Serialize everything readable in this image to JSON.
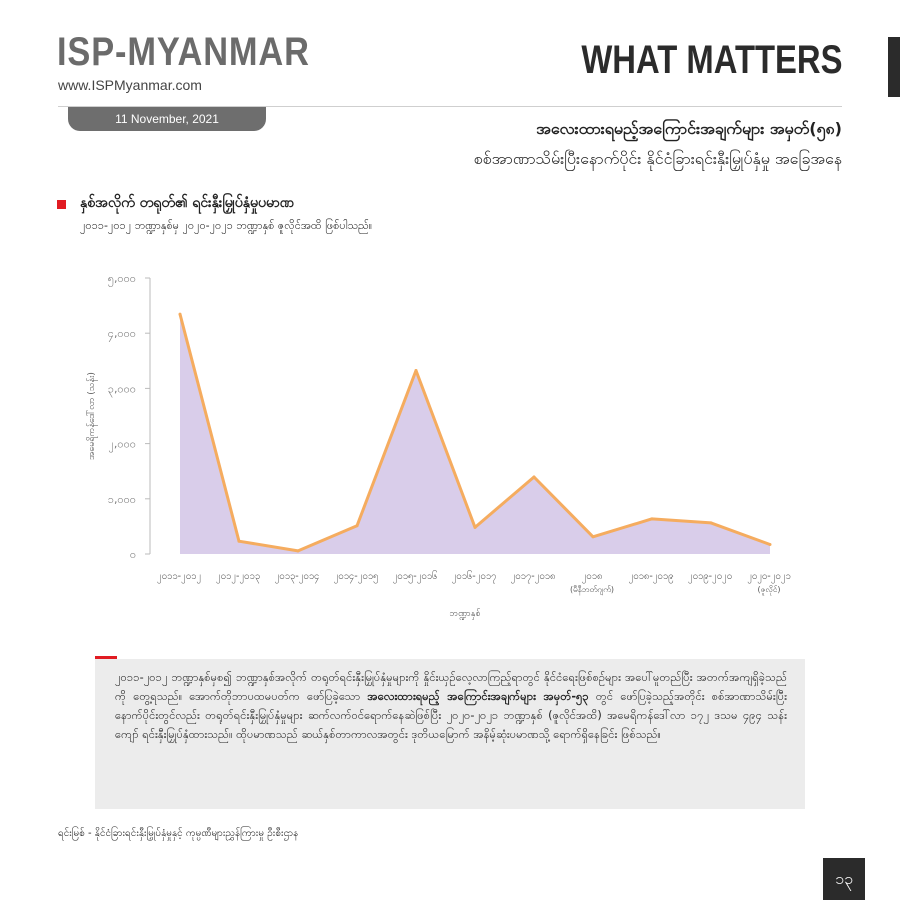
{
  "header": {
    "brand": "ISP-MYANMAR",
    "url": "www.ISPMyanmar.com",
    "section": "WHAT MATTERS",
    "date": "11 November, 2021"
  },
  "title": {
    "line1": "အလေးထားရမည့်အကြောင်းအချက်များ အမှတ်(၅၈)",
    "line2": "စစ်အာဏာသိမ်းပြီးနောက်ပိုင်း နိုင်ငံခြားရင်းနှီးမြှုပ်နှံမှု အခြေအနေ"
  },
  "section": {
    "title": "နှစ်အလိုက် တရုတ်၏ ရင်းနှီးမြှုပ်နှံမှုပမာဏ",
    "subtitle": "၂၀၁၁-၂၀၁၂ ဘဏ္ဍာနှစ်မှ ၂၀၂၀-၂၀၂၁ ဘဏ္ဍာနှစ် ဇူလိုင်အထိ ဖြစ်ပါသည်။"
  },
  "chart_data": {
    "type": "area",
    "ylabel": "အမေရိကန်ဒေါ်လာ (သန်း)",
    "xlabel": "ဘဏ္ဍာနှစ်",
    "ylim": [
      0,
      5000
    ],
    "yticks": [
      "၅,၀၀၀",
      "၄,၀၀၀",
      "၃,၀၀၀",
      "၂,၀၀၀",
      "၁,၀၀၀",
      "၀"
    ],
    "categories": [
      {
        "label": "၂၀၁၁-၂၀၁၂",
        "sub": ""
      },
      {
        "label": "၂၀၁၂-၂၀၁၃",
        "sub": ""
      },
      {
        "label": "၂၀၁၃-၂၀၁၄",
        "sub": ""
      },
      {
        "label": "၂၀၁၄-၂၀၁၅",
        "sub": ""
      },
      {
        "label": "၂၀၁၅-၂၀၁၆",
        "sub": ""
      },
      {
        "label": "၂၀၁၆-၂၀၁၇",
        "sub": ""
      },
      {
        "label": "၂၀၁၇-၂၀၁၈",
        "sub": ""
      },
      {
        "label": "၂၀၁၈",
        "sub": "(မီနီဘတ်ဂျက်)"
      },
      {
        "label": "၂၀၁၈-၂၀၁၉",
        "sub": ""
      },
      {
        "label": "၂၀၁၉-၂၀၂၀",
        "sub": ""
      },
      {
        "label": "၂၀၂၀-၂၀၂၁",
        "sub": "(ဇူလိုင်)"
      }
    ],
    "values": [
      4346,
      232,
      56,
      511,
      3324,
      483,
      1395,
      312,
      637,
      563,
      172
    ],
    "colors": {
      "fill": "#d9cdea",
      "line": "#f5ac5f"
    },
    "grid": false
  },
  "note": {
    "p1": "၂၀၁၁-၂၀၁၂ ဘဏ္ဍာနှစ်မှစ၍ ဘဏ္ဍာနှစ်အလိုက် တရုတ်ရင်းနှီးမြှုပ်နှံမှုများကို နှိုင်းယှဉ်လေ့လာကြည့်ရာတွင် နိုင်ငံရေးဖြစ်စဉ်များ အပေါ်မူတည်ပြီး အတက်အကျရှိခဲ့သည်ကို တွေ့ရသည်။ အောက်တိုဘာပထမပတ်က ဖော်ပြခဲ့သော ",
    "bold": "အလေးထားရမည့် အကြောင်းအချက်များ အမှတ်-၅၃",
    "p2": " တွင် ဖော်ပြခဲ့သည့်အတိုင်း စစ်အာဏာသိမ်းပြီးနောက်ပိုင်းတွင်လည်း တရုတ်ရင်းနှီးမြှုပ်နှံမှုများ ဆက်လက်ဝင်ရောက်နေဆဲဖြစ်ပြီး ၂၀၂၀-၂၀၂၁ ဘဏ္ဍာနှစ် (ဇူလိုင်အထိ) အမေရိကန်ဒေါ်လာ ၁၇၂ ဒသမ ၄၉၄ သန်းကျော် ရင်းနှီးမြှုပ်နှံထားသည်။ ထိုပမာဏသည် ဆယ်နှစ်တာကာလအတွင်း ဒုတိယမြောက် အနိမ့်ဆုံးပမာဏသို့ ရောက်ရှိနေခြင်း ဖြစ်သည်။"
  },
  "source": "ရင်းမြစ် -    နိုင်ငံခြားရင်းနှီးမြှုပ်နှံမှုနှင့် ကုမ္ပဏီများညွှန်ကြားမှု ဦးစီးဌာန",
  "page_number": "၁၃"
}
